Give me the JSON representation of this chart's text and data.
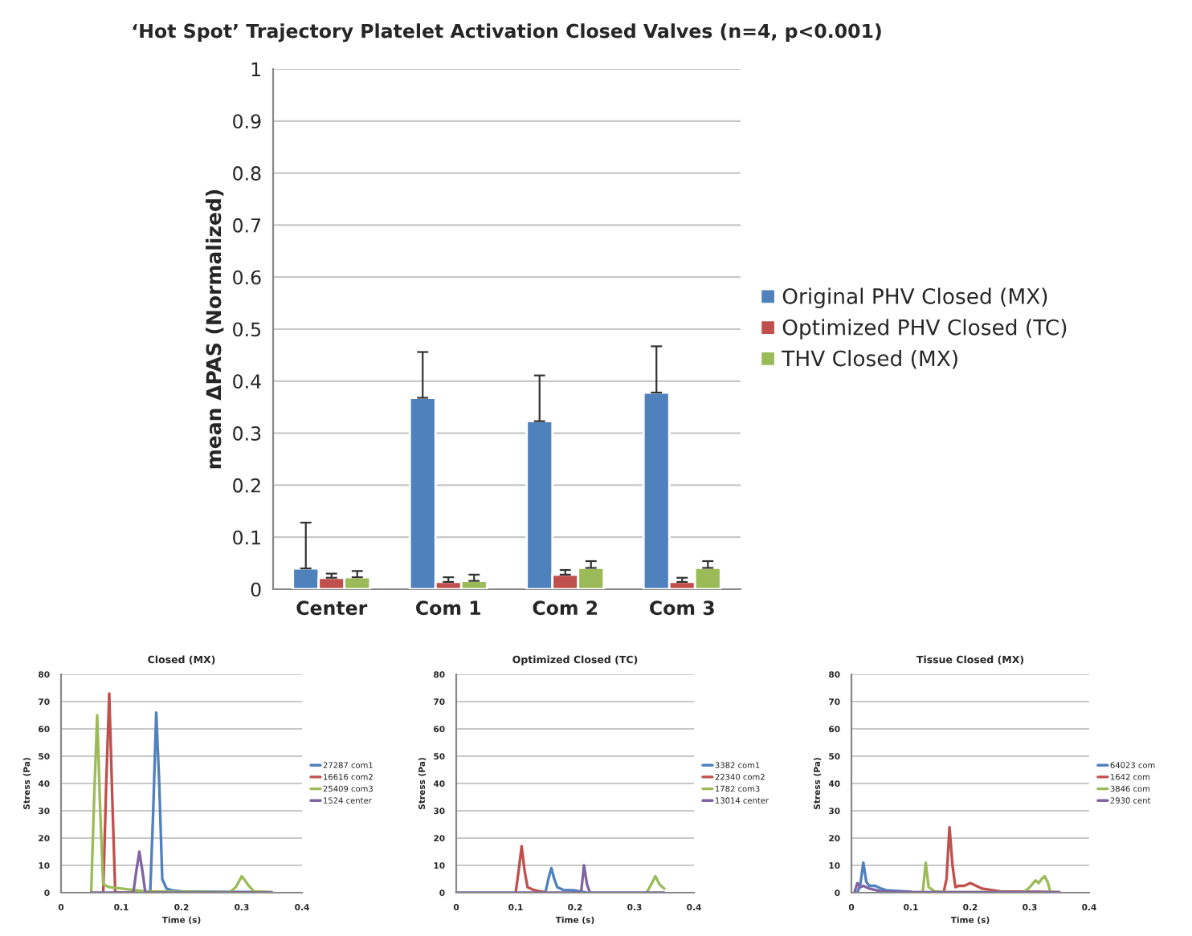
{
  "chart_data": [
    {
      "type": "bar",
      "title": "‘Hot Spot’ Trajectory Platelet Activation Closed Valves (n=4, p<0.001)",
      "ylabel": "mean ΔPAS (Normalized)",
      "categories": [
        "Center",
        "Com 1",
        "Com 2",
        "Com 3"
      ],
      "series": [
        {
          "name": "Original PHV Closed (MX)",
          "color": "#4f81bd",
          "values": [
            0.04,
            0.368,
            0.323,
            0.378
          ],
          "errors": [
            [
              0.04,
              0.128
            ],
            [
              0.368,
              0.456
            ],
            [
              0.323,
              0.411
            ],
            [
              0.378,
              0.467
            ]
          ]
        },
        {
          "name": "Optimized PHV Closed (TC)",
          "color": "#c0504d",
          "values": [
            0.022,
            0.014,
            0.028,
            0.014
          ],
          "errors": [
            [
              0.022,
              0.03
            ],
            [
              0.014,
              0.023
            ],
            [
              0.028,
              0.037
            ],
            [
              0.014,
              0.022
            ]
          ]
        },
        {
          "name": "THV Closed (MX)",
          "color": "#9bbb59",
          "values": [
            0.023,
            0.016,
            0.041,
            0.041
          ],
          "errors": [
            [
              0.023,
              0.035
            ],
            [
              0.016,
              0.028
            ],
            [
              0.041,
              0.054
            ],
            [
              0.041,
              0.054
            ]
          ]
        }
      ],
      "ylim": [
        0,
        1
      ],
      "yticks": [
        0,
        0.1,
        0.2,
        0.3,
        0.4,
        0.5,
        0.6,
        0.7,
        0.8,
        0.9,
        1
      ],
      "grid": "y",
      "legend": "right"
    },
    {
      "type": "line",
      "title": "Closed (MX)",
      "xlabel": "Time (s)",
      "ylabel": "Stress (Pa)",
      "series": [
        {
          "name": "27287 com1",
          "color": "#4f81bd",
          "x": [
            0.148,
            0.153,
            0.158,
            0.163,
            0.168,
            0.175,
            0.185,
            0.2,
            0.25,
            0.35
          ],
          "values": [
            0,
            30,
            66,
            40,
            5,
            1.5,
            0.8,
            0.5,
            0.3,
            0.2
          ]
        },
        {
          "name": "16616 com2",
          "color": "#c0504d",
          "x": [
            0.07,
            0.075,
            0.08,
            0.085,
            0.09,
            0.1,
            0.15,
            0.35
          ],
          "values": [
            0,
            40,
            73,
            35,
            0,
            0,
            0,
            0
          ]
        },
        {
          "name": "25409 com3",
          "color": "#9bbb59",
          "x": [
            0.05,
            0.055,
            0.06,
            0.065,
            0.07,
            0.08,
            0.1,
            0.12,
            0.14,
            0.2,
            0.28,
            0.29,
            0.3,
            0.31,
            0.32,
            0.35
          ],
          "values": [
            0,
            35,
            65,
            30,
            3,
            2,
            1.5,
            1,
            0.5,
            0.3,
            0.2,
            2,
            6,
            3,
            0.5,
            0.2
          ]
        },
        {
          "name": "1524 center",
          "color": "#8064a2",
          "x": [
            0.05,
            0.12,
            0.125,
            0.13,
            0.135,
            0.14,
            0.35
          ],
          "values": [
            0,
            0,
            8,
            15,
            8,
            0,
            0
          ]
        }
      ],
      "xlim": [
        0,
        0.4
      ],
      "xticks": [
        0,
        0.1,
        0.2,
        0.3,
        0.4
      ],
      "ylim": [
        0,
        80
      ],
      "yticks": [
        0,
        10,
        20,
        30,
        40,
        50,
        60,
        70,
        80
      ],
      "grid": "y",
      "legend": "right",
      "marker": "none"
    },
    {
      "type": "line",
      "title": "Optimized Closed (TC)",
      "xlabel": "Time (s)",
      "ylabel": "Stress (Pa)",
      "series": [
        {
          "name": "3382 com1",
          "color": "#4f81bd",
          "x": [
            0.15,
            0.155,
            0.16,
            0.165,
            0.17,
            0.18,
            0.2,
            0.22
          ],
          "values": [
            0,
            5,
            9,
            5,
            2,
            1,
            0.8,
            0
          ]
        },
        {
          "name": "22340 com2",
          "color": "#c0504d",
          "x": [
            0.1,
            0.105,
            0.11,
            0.115,
            0.12,
            0.13,
            0.14,
            0.15
          ],
          "values": [
            0,
            8,
            17,
            8,
            2,
            1,
            0.5,
            0.2
          ]
        },
        {
          "name": "1782 com3",
          "color": "#9bbb59",
          "x": [
            0.32,
            0.328,
            0.335,
            0.342,
            0.35
          ],
          "values": [
            0,
            3,
            6,
            3,
            1.5
          ]
        },
        {
          "name": "13014 center",
          "color": "#8064a2",
          "x": [
            0,
            0.21,
            0.215,
            0.22,
            0.225,
            0.35
          ],
          "values": [
            0,
            0,
            10,
            3,
            0,
            0
          ]
        }
      ],
      "xlim": [
        0,
        0.4
      ],
      "xticks": [
        0,
        0.1,
        0.2,
        0.3,
        0.4
      ],
      "ylim": [
        0,
        80
      ],
      "yticks": [
        0,
        10,
        20,
        30,
        40,
        50,
        60,
        70,
        80
      ],
      "grid": "y",
      "legend": "right",
      "marker": "none"
    },
    {
      "type": "line",
      "title": "Tissue Closed (MX)",
      "xlabel": "Time (s)",
      "ylabel": "Stress (Pa)",
      "series": [
        {
          "name": "64023 com",
          "color": "#4f81bd",
          "x": [
            0.01,
            0.015,
            0.02,
            0.025,
            0.03,
            0.04,
            0.05,
            0.06,
            0.1
          ],
          "values": [
            0,
            3,
            11,
            4,
            2.5,
            2.5,
            1.5,
            0.8,
            0.3
          ]
        },
        {
          "name": "1642 com",
          "color": "#c0504d",
          "x": [
            0.155,
            0.16,
            0.165,
            0.17,
            0.175,
            0.18,
            0.19,
            0.2,
            0.21,
            0.22,
            0.25,
            0.35
          ],
          "values": [
            0,
            5,
            24,
            10,
            2,
            2.5,
            2.5,
            3.5,
            2.5,
            1.5,
            0.5,
            0.2
          ]
        },
        {
          "name": "3846 com",
          "color": "#9bbb59",
          "x": [
            0.1,
            0.12,
            0.125,
            0.13,
            0.14,
            0.16,
            0.29,
            0.3,
            0.31,
            0.315,
            0.32,
            0.325,
            0.33,
            0.335
          ],
          "values": [
            0.2,
            0.2,
            11,
            2,
            0.5,
            0.2,
            0.2,
            2,
            4.5,
            3.5,
            5,
            6,
            4,
            0
          ]
        },
        {
          "name": "2930 cent",
          "color": "#8064a2",
          "x": [
            0.005,
            0.01,
            0.015,
            0.02,
            0.03,
            0.05,
            0.1,
            0.35
          ],
          "values": [
            0,
            3.5,
            2,
            2.5,
            1.5,
            0.5,
            0.2,
            0.2
          ]
        }
      ],
      "xlim": [
        0,
        0.4
      ],
      "xticks": [
        0,
        0.1,
        0.2,
        0.3,
        0.4
      ],
      "ylim": [
        0,
        80
      ],
      "yticks": [
        0,
        10,
        20,
        30,
        40,
        50,
        60,
        70,
        80
      ],
      "grid": "y",
      "legend": "right",
      "marker": "none"
    }
  ]
}
